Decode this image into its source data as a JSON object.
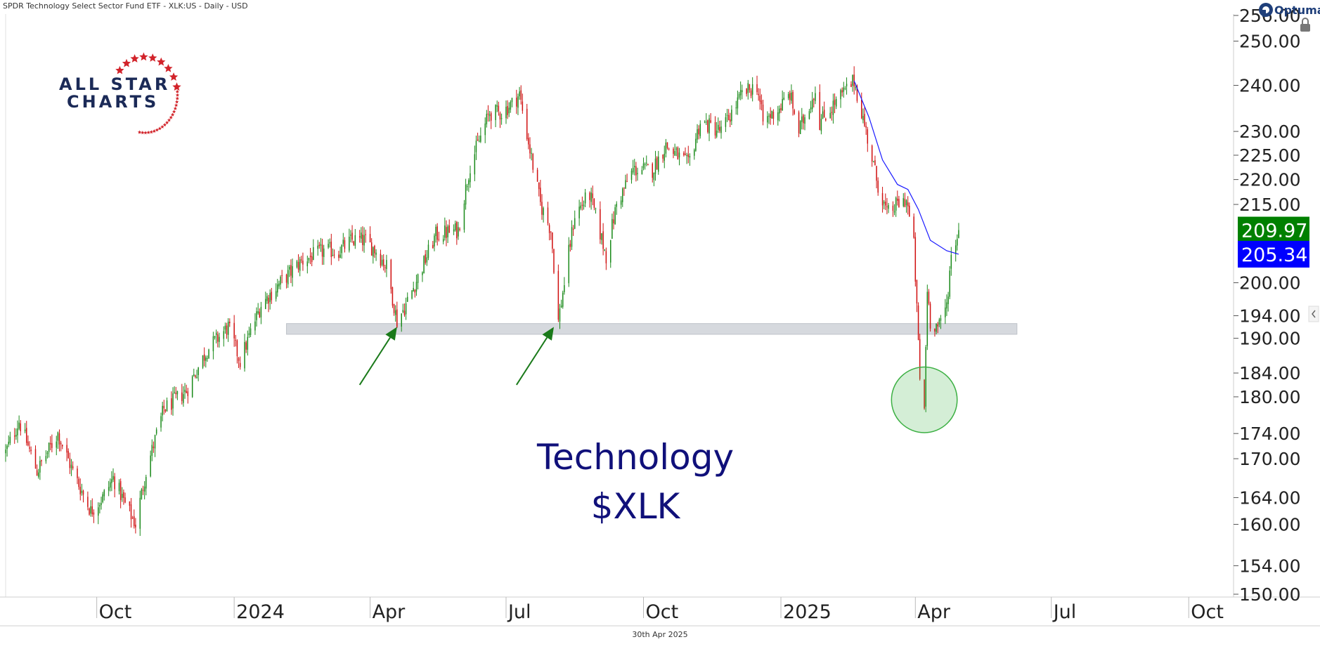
{
  "header": {
    "title": "SPDR Technology Select Sector Fund ETF - XLK:US - Daily - USD"
  },
  "footer": {
    "date": "30th Apr 2025"
  },
  "logo": {
    "line1": "ALL STAR",
    "line2": "CHARTS",
    "star_color": "#d2232a",
    "text_color": "#1b2a57"
  },
  "brand": {
    "name": "Optuma",
    "icon": "optuma-icon",
    "lock_icon": "lock-icon",
    "collapse_icon": "chevron-left-icon"
  },
  "chart_data": {
    "type": "candlestick",
    "scale": "log",
    "ylim": [
      150,
      256
    ],
    "yticks": [
      "256.00",
      "250.00",
      "240.00",
      "230.00",
      "225.00",
      "220.00",
      "215.00",
      "200.00",
      "194.00",
      "190.00",
      "184.00",
      "180.00",
      "174.00",
      "170.00",
      "164.00",
      "160.00",
      "154.00",
      "150.00"
    ],
    "xticks": [
      "Oct",
      "2024",
      "Apr",
      "Jul",
      "Oct",
      "2025",
      "Apr",
      "Jul",
      "Oct"
    ],
    "x_range": [
      "2023-08-01",
      "2025-10-31"
    ],
    "price_path": [
      [
        "2023-08-01",
        171
      ],
      [
        "2023-08-10",
        176
      ],
      [
        "2023-08-22",
        168
      ],
      [
        "2023-09-05",
        174
      ],
      [
        "2023-09-15",
        168
      ],
      [
        "2023-09-27",
        162
      ],
      [
        "2023-10-05",
        164
      ],
      [
        "2023-10-12",
        167
      ],
      [
        "2023-10-20",
        163
      ],
      [
        "2023-10-27",
        160
      ],
      [
        "2023-11-03",
        168
      ],
      [
        "2023-11-15",
        178
      ],
      [
        "2023-11-30",
        181
      ],
      [
        "2023-12-14",
        188
      ],
      [
        "2023-12-28",
        192
      ],
      [
        "2024-01-05",
        186
      ],
      [
        "2024-01-19",
        196
      ],
      [
        "2024-02-01",
        200
      ],
      [
        "2024-02-15",
        204
      ],
      [
        "2024-03-01",
        206
      ],
      [
        "2024-03-11",
        206
      ],
      [
        "2024-03-20",
        208
      ],
      [
        "2024-03-28",
        208
      ],
      [
        "2024-04-05",
        206
      ],
      [
        "2024-04-12",
        203
      ],
      [
        "2024-04-19",
        193
      ],
      [
        "2024-04-25",
        196
      ],
      [
        "2024-05-03",
        201
      ],
      [
        "2024-05-15",
        209
      ],
      [
        "2024-05-30",
        210
      ],
      [
        "2024-06-07",
        223
      ],
      [
        "2024-06-13",
        228
      ],
      [
        "2024-06-20",
        234
      ],
      [
        "2024-06-28",
        234
      ],
      [
        "2024-07-05",
        236
      ],
      [
        "2024-07-10",
        238
      ],
      [
        "2024-07-17",
        226
      ],
      [
        "2024-07-24",
        215
      ],
      [
        "2024-07-31",
        210
      ],
      [
        "2024-08-05",
        193
      ],
      [
        "2024-08-09",
        200
      ],
      [
        "2024-08-16",
        213
      ],
      [
        "2024-08-26",
        217
      ],
      [
        "2024-09-06",
        205
      ],
      [
        "2024-09-13",
        215
      ],
      [
        "2024-09-24",
        222
      ],
      [
        "2024-10-07",
        222
      ],
      [
        "2024-10-16",
        227
      ],
      [
        "2024-10-31",
        223
      ],
      [
        "2024-11-08",
        232
      ],
      [
        "2024-11-22",
        230
      ],
      [
        "2024-12-06",
        238
      ],
      [
        "2024-12-16",
        240
      ],
      [
        "2024-12-20",
        232
      ],
      [
        "2024-12-31",
        235
      ],
      [
        "2025-01-07",
        238
      ],
      [
        "2025-01-13",
        230
      ],
      [
        "2025-01-24",
        239
      ],
      [
        "2025-01-27",
        232
      ],
      [
        "2025-02-06",
        236
      ],
      [
        "2025-02-19",
        241
      ],
      [
        "2025-02-27",
        230
      ],
      [
        "2025-03-06",
        220
      ],
      [
        "2025-03-13",
        213
      ],
      [
        "2025-03-20",
        215
      ],
      [
        "2025-03-26",
        216
      ],
      [
        "2025-03-31",
        207
      ],
      [
        "2025-04-04",
        183
      ],
      [
        "2025-04-07",
        178
      ],
      [
        "2025-04-09",
        199
      ],
      [
        "2025-04-11",
        193
      ],
      [
        "2025-04-17",
        192
      ],
      [
        "2025-04-22",
        196
      ],
      [
        "2025-04-25",
        205
      ],
      [
        "2025-04-30",
        210
      ]
    ],
    "moving_average": {
      "color": "#1a1aff",
      "points": [
        [
          "2025-02-19",
          241
        ],
        [
          "2025-03-01",
          233
        ],
        [
          "2025-03-10",
          224
        ],
        [
          "2025-03-20",
          219
        ],
        [
          "2025-03-27",
          218
        ],
        [
          "2025-04-03",
          214
        ],
        [
          "2025-04-11",
          208
        ],
        [
          "2025-04-22",
          206
        ],
        [
          "2025-04-30",
          205.34
        ]
      ]
    },
    "last_price": {
      "value": 209.97,
      "label": "209.97",
      "color": "#008000"
    },
    "ma_price": {
      "value": 205.34,
      "label": "205.34",
      "color": "#0000ff"
    },
    "support_zone": {
      "low": 190.7,
      "high": 192.6,
      "x_start": "2024-02-05",
      "x_end": "2025-06-08",
      "color": "#d6d9de"
    },
    "arrows": [
      {
        "from": [
          "2024-03-25",
          182
        ],
        "to": [
          "2024-04-19",
          192
        ],
        "color": "#1a7a1a"
      },
      {
        "from": [
          "2024-07-08",
          182
        ],
        "to": [
          "2024-08-02",
          192
        ],
        "color": "#1a7a1a"
      }
    ],
    "circle": {
      "center": [
        "2025-04-07",
        179.5
      ],
      "radius_days": 14,
      "color": "#3cb043"
    },
    "annotation_lines": [
      "Technology",
      "$XLK"
    ],
    "up_color": "#1a8a1a",
    "down_color": "#d01010",
    "grid": false
  }
}
